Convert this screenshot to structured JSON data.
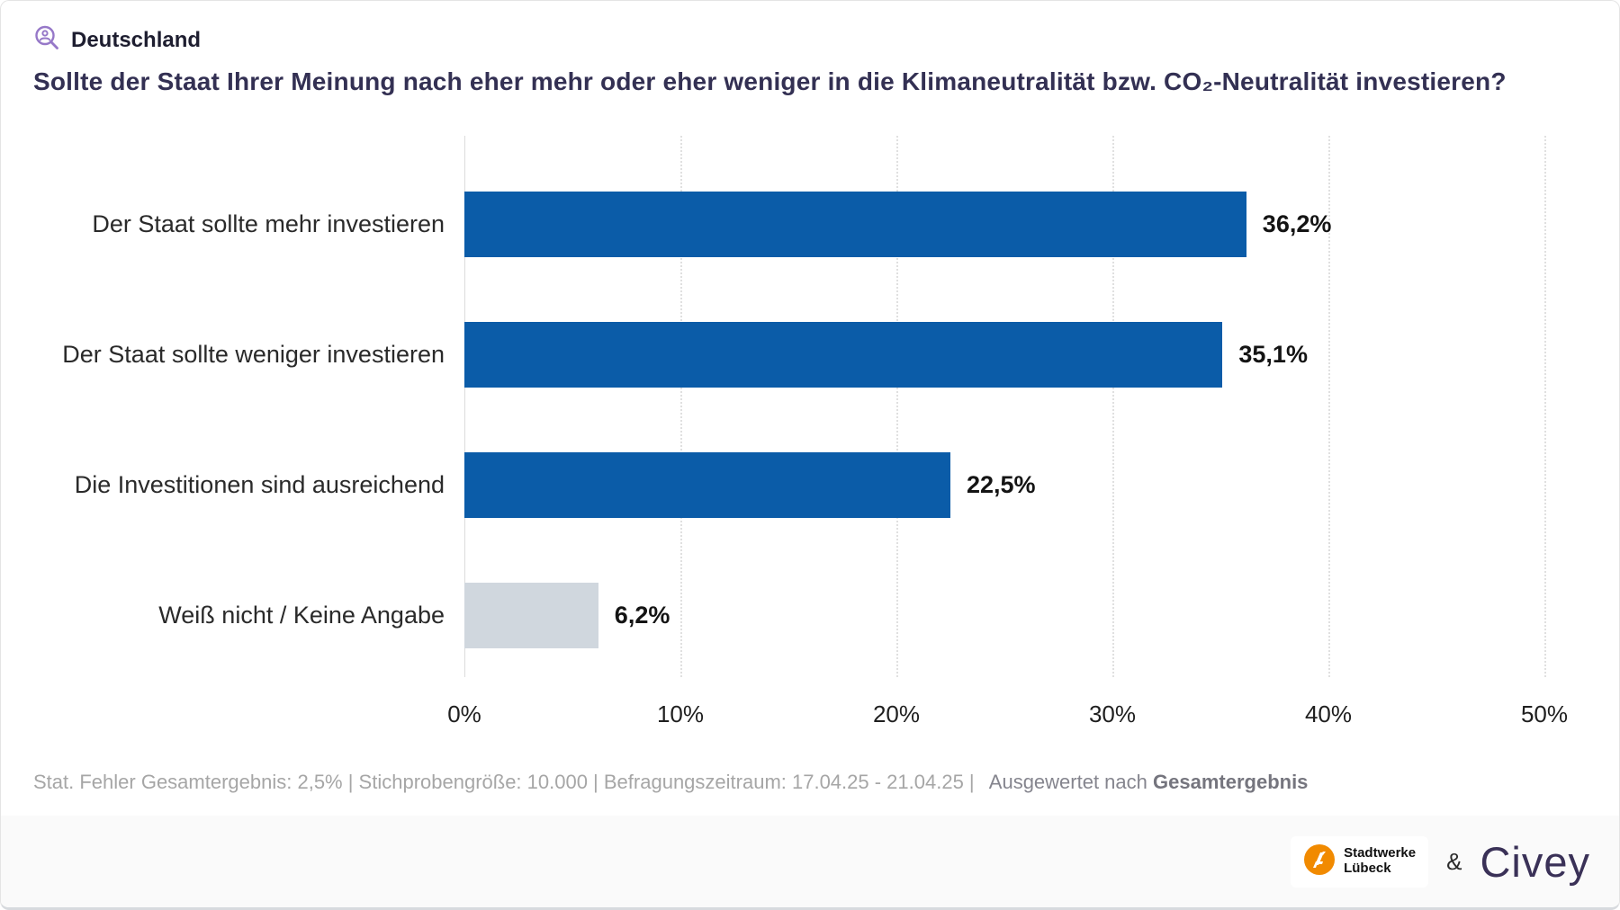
{
  "header": {
    "region_label": "Deutschland"
  },
  "title": "Sollte der Staat Ihrer Meinung nach eher mehr oder eher weniger in die Klimaneutralität bzw. CO₂-Neutralität investieren?",
  "chart_data": {
    "type": "bar",
    "orientation": "horizontal",
    "categories": [
      "Der Staat sollte mehr investieren",
      "Der Staat sollte weniger investieren",
      "Die Investitionen sind ausreichend",
      "Weiß nicht / Keine Angabe"
    ],
    "values": [
      36.2,
      35.1,
      22.5,
      6.2
    ],
    "value_labels": [
      "36,2%",
      "35,1%",
      "22,5%",
      "6,2%"
    ],
    "bar_colors": [
      "#0b5ca8",
      "#0b5ca8",
      "#0b5ca8",
      "#d0d7de"
    ],
    "xlim": [
      0,
      50
    ],
    "x_ticks": [
      "0%",
      "10%",
      "20%",
      "30%",
      "40%",
      "50%"
    ],
    "grid": "vertical-dotted",
    "legend": "none"
  },
  "footnote": {
    "stats": "Stat. Fehler Gesamtergebnis: 2,5% | Stichprobengröße: 10.000 | Befragungszeitraum: 17.04.25 - 21.04.25 |",
    "evaluated_prefix": "Ausgewertet nach",
    "evaluated_value": "Gesamtergebnis"
  },
  "footer": {
    "partner_name_line1": "Stadtwerke",
    "partner_name_line2": "Lübeck",
    "ampersand": "&",
    "brand": "Civey"
  },
  "colors": {
    "bar_blue": "#0b5ca8",
    "bar_gray": "#d0d7de",
    "title_purple": "#333053",
    "icon_purple": "#9678c8",
    "partner_orange": "#f18a00",
    "footer_bg": "#fafafa"
  }
}
